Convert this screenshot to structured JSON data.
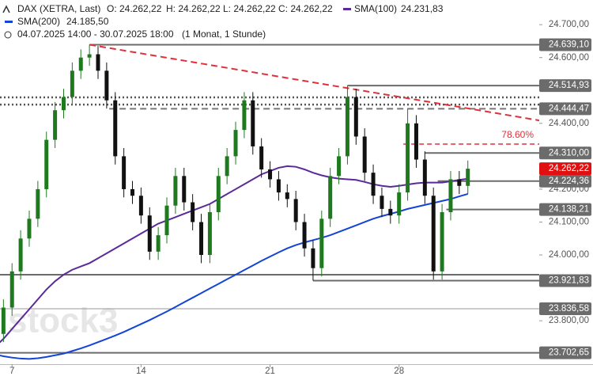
{
  "chart_data": {
    "type": "candlestick",
    "quote": {
      "name": "DAX (XETRA, Last)",
      "fields": [
        "O: 24.262,22",
        "H: 24.262,22",
        "L: 24.262,22",
        "C: 24.262,22"
      ]
    },
    "period": "04.07.2025 14:00 - 30.07.2025 18:00",
    "interval": "(1 Monat, 1 Stunde)",
    "watermark": "stock3",
    "xlim": [
      1.6,
      64.3
    ],
    "xticks": [
      {
        "value": 3,
        "label": "7"
      },
      {
        "value": 18,
        "label": "14"
      },
      {
        "value": 33,
        "label": "21"
      },
      {
        "value": 48,
        "label": "28"
      }
    ],
    "ylim": [
      23668,
      24775
    ],
    "yticks": [
      {
        "value": 24700,
        "label": "24.700,00"
      },
      {
        "value": 24600,
        "label": "24.600,00"
      },
      {
        "value": 24400,
        "label": "24.400,00"
      },
      {
        "value": 24200,
        "label": "24.200,00"
      },
      {
        "value": 24100,
        "label": "24.100,00"
      },
      {
        "value": 24000,
        "label": "24.000,00"
      },
      {
        "value": 23800,
        "label": "23.800,00"
      }
    ],
    "up_color": "#1f7a1f",
    "down_color": "#111111",
    "candles": {
      "open": [
        23740,
        23790,
        23760,
        23840,
        23950,
        24050,
        24110,
        24200,
        24350,
        24440,
        24480,
        24560,
        24600,
        24610,
        24560,
        24470,
        24300,
        24200,
        24180,
        24120,
        24010,
        24060,
        24150,
        24240,
        24160,
        24100,
        24000,
        24130,
        24240,
        24300,
        24380,
        24470,
        24330,
        24260,
        24230,
        24190,
        24170,
        24100,
        24020,
        23960,
        24110,
        24240,
        24300,
        24480,
        24360,
        24250,
        24180,
        24140,
        24120,
        24190,
        24400,
        24290,
        24180,
        23950,
        24130,
        24230,
        24210
      ],
      "high": [
        23815,
        23815,
        23865,
        23975,
        24075,
        24135,
        24225,
        24375,
        24465,
        24505,
        24585,
        24625,
        24639.1,
        24635,
        24585,
        24495,
        24325,
        24225,
        24205,
        24145,
        24085,
        24175,
        24265,
        24265,
        24185,
        24125,
        24155,
        24265,
        24325,
        24405,
        24495,
        24495,
        24355,
        24285,
        24255,
        24215,
        24195,
        24125,
        24045,
        24135,
        24265,
        24325,
        24514.93,
        24505,
        24385,
        24275,
        24205,
        24165,
        24215,
        24444,
        24425,
        24315,
        24205,
        24155,
        24255,
        24255,
        24287
      ],
      "low": [
        23715,
        23735,
        23735,
        23815,
        23925,
        24025,
        24085,
        24175,
        24325,
        24415,
        24455,
        24535,
        24575,
        24535,
        24445,
        24275,
        24175,
        24155,
        24095,
        23985,
        23985,
        24035,
        24125,
        24135,
        24075,
        23975,
        23975,
        24105,
        24215,
        24275,
        24355,
        24305,
        24235,
        24205,
        24165,
        24145,
        24075,
        23995,
        23921.83,
        23935,
        24085,
        24215,
        24275,
        24335,
        24225,
        24155,
        24115,
        24095,
        24095,
        24165,
        24265,
        24155,
        23925,
        23925,
        24105,
        24185,
        24185
      ],
      "close": [
        23790,
        23760,
        23840,
        23950,
        24050,
        24110,
        24200,
        24350,
        24440,
        24480,
        24560,
        24600,
        24610,
        24560,
        24470,
        24300,
        24200,
        24180,
        24120,
        24010,
        24060,
        24150,
        24240,
        24160,
        24100,
        24000,
        24130,
        24240,
        24300,
        24380,
        24470,
        24330,
        24260,
        24230,
        24190,
        24170,
        24100,
        24020,
        23960,
        24110,
        24240,
        24300,
        24480,
        24360,
        24250,
        24180,
        24140,
        24120,
        24190,
        24400,
        24290,
        24180,
        23950,
        24130,
        24230,
        24210,
        24262.22
      ]
    },
    "series": [
      {
        "name": "SMA(100)",
        "color": "#5b2a9a",
        "last_label": "24.231,83",
        "values": [
          23700,
          23720,
          23745,
          23775,
          23805,
          23835,
          23865,
          23895,
          23920,
          23940,
          23955,
          23965,
          23975,
          23990,
          24005,
          24020,
          24035,
          24050,
          24065,
          24080,
          24095,
          24105,
          24115,
          24125,
          24135,
          24145,
          24155,
          24170,
          24185,
          24200,
          24215,
          24230,
          24245,
          24255,
          24265,
          24270,
          24268,
          24260,
          24250,
          24242,
          24236,
          24232,
          24230,
          24228,
          24222,
          24215,
          24210,
          24207,
          24210,
          24214,
          24218,
          24220,
          24220,
          24220,
          24224,
          24228,
          24231.83
        ]
      },
      {
        "name": "SMA(200)",
        "color": "#1444d6",
        "last_label": "24.185,50",
        "values": [
          23705,
          23698,
          23692,
          23688,
          23685,
          23684,
          23686,
          23690,
          23695,
          23700,
          23708,
          23716,
          23725,
          23735,
          23745,
          23755,
          23766,
          23778,
          23790,
          23802,
          23815,
          23828,
          23842,
          23856,
          23870,
          23884,
          23898,
          23912,
          23926,
          23940,
          23954,
          23968,
          23982,
          23995,
          24008,
          24020,
          24030,
          24038,
          24045,
          24052,
          24060,
          24070,
          24080,
          24090,
          24100,
          24110,
          24118,
          24125,
          24132,
          24140,
          24146,
          24152,
          24158,
          24164,
          24170,
          24178,
          24185.5
        ]
      }
    ],
    "levels": [
      {
        "value": 24639.1,
        "label": "24.639,10",
        "start": 12,
        "style": "solid"
      },
      {
        "value": 24514.93,
        "label": "24.514,93",
        "start": 42,
        "style": "solid"
      },
      {
        "value": 24479,
        "start": 1.6,
        "style": "dotted"
      },
      {
        "value": 24457,
        "start": 1.6,
        "style": "dotted"
      },
      {
        "value": 24444.47,
        "label": "24.444,47",
        "start": 14.3,
        "style": "dashed"
      },
      {
        "value": 24310,
        "label": "24.310,00",
        "start": 51,
        "style": "solid"
      },
      {
        "value": 24224.36,
        "label": "24.224,36",
        "start": 52.5,
        "style": "solid"
      },
      {
        "value": 24138.21,
        "label": "24.138,21",
        "start": 53.5,
        "style": "solid"
      },
      {
        "value": 23940,
        "start": 1.6,
        "style": "solid"
      },
      {
        "value": 23921.83,
        "label": "23.921,83",
        "start": 38,
        "style": "solid"
      },
      {
        "value": 23836.58,
        "label": "23.836,58",
        "start": 1.6,
        "style": "thin"
      },
      {
        "value": 23702.65,
        "label": "23.702,65",
        "start": 1.6,
        "style": "solid"
      }
    ],
    "last_price": {
      "value": 24262.22,
      "label": "24.262,22",
      "color": "#e01010"
    },
    "fib_line": {
      "value": 24337,
      "start": 48.5,
      "label": "78.60%",
      "color": "#e0303a"
    },
    "trendline": {
      "x": [
        12,
        64.3
      ],
      "y": [
        24639.1,
        24409
      ],
      "color": "#e0303a"
    }
  }
}
